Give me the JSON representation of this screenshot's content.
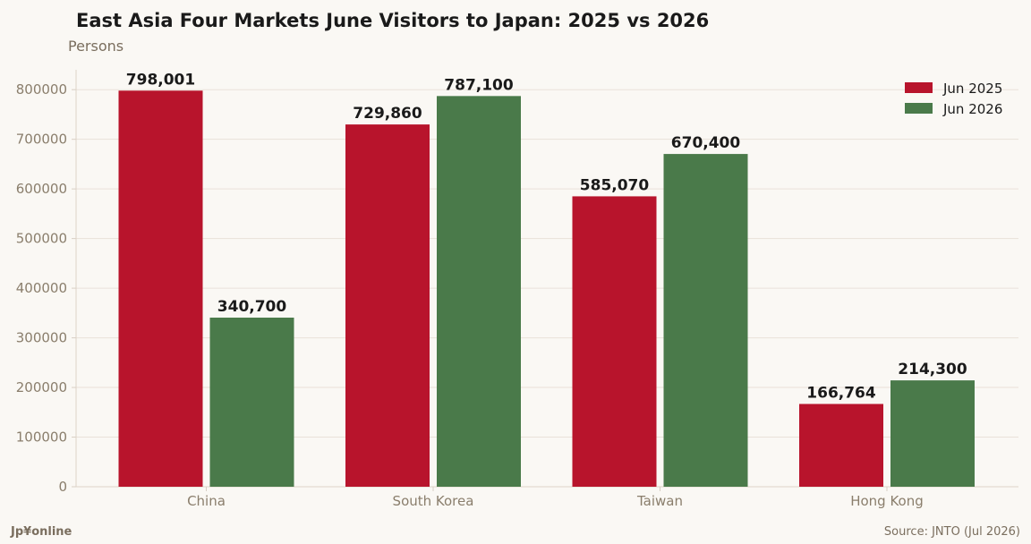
{
  "header": {
    "title": "East Asia Four Markets June Visitors to Japan: 2025 vs 2026",
    "unit_label": "Persons"
  },
  "footer": {
    "brand": "Jp¥online",
    "source": "Source: JNTO (Jul 2026)"
  },
  "colors": {
    "background": "#faf8f4",
    "series_2025": "#b8142c",
    "series_2026": "#4a7a4a",
    "grid": "#e9e1d9",
    "axis_text": "#8a7e6c"
  },
  "chart_data": {
    "type": "bar",
    "title": "East Asia Four Markets June Visitors to Japan: 2025 vs 2026",
    "ylabel": "Persons",
    "xlabel": "",
    "categories": [
      "China",
      "South Korea",
      "Taiwan",
      "Hong Kong"
    ],
    "series": [
      {
        "name": "Jun 2025",
        "values": [
          798001,
          729860,
          585070,
          166764
        ],
        "labels": [
          "798,001",
          "729,860",
          "585,070",
          "166,764"
        ]
      },
      {
        "name": "Jun 2026",
        "values": [
          340700,
          787100,
          670400,
          214300
        ],
        "labels": [
          "340,700",
          "787,100",
          "670,400",
          "214,300"
        ]
      }
    ],
    "ylim": [
      0,
      840000
    ],
    "yticks": [
      0,
      100000,
      200000,
      300000,
      400000,
      500000,
      600000,
      700000,
      800000
    ],
    "grid": true,
    "legend_position": "top-right"
  }
}
